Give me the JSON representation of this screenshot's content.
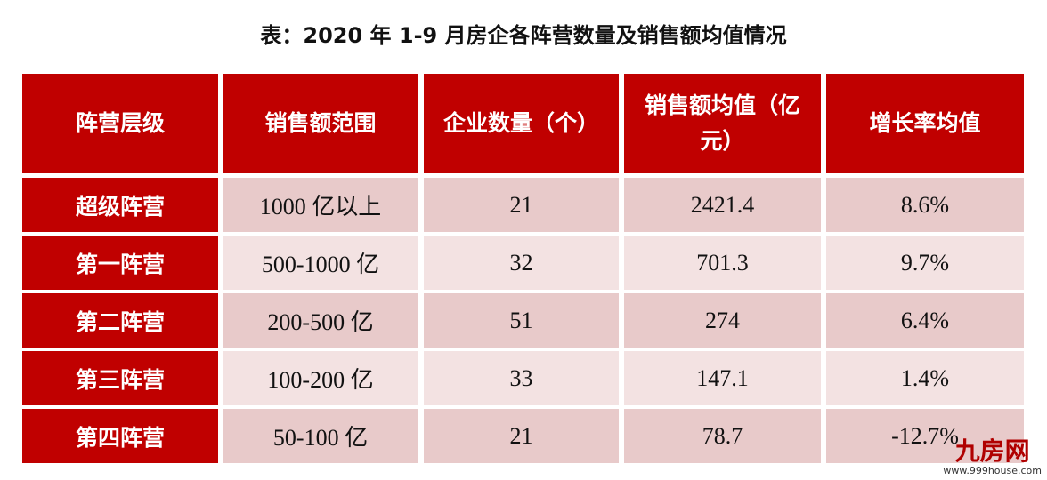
{
  "title": "表：2020 年 1-9 月房企各阵营数量及销售额均值情况",
  "table": {
    "header": [
      "阵营层级",
      "销售额范围",
      "企业数量（个）",
      "销售额均值（亿元）",
      "增长率均值"
    ],
    "rows": [
      [
        "超级阵营",
        "1000 亿以上",
        "21",
        "2421.4",
        "8.6%"
      ],
      [
        "第一阵营",
        "500-1000 亿",
        "32",
        "701.3",
        "9.7%"
      ],
      [
        "第二阵营",
        "200-500 亿",
        "51",
        "274",
        "6.4%"
      ],
      [
        "第三阵营",
        "100-200 亿",
        "33",
        "147.1",
        "1.4%"
      ],
      [
        "第四阵营",
        "50-100 亿",
        "21",
        "78.7",
        "-12.7%"
      ]
    ]
  },
  "watermark": {
    "brand": "九房网",
    "url": "www.999house.com"
  }
}
